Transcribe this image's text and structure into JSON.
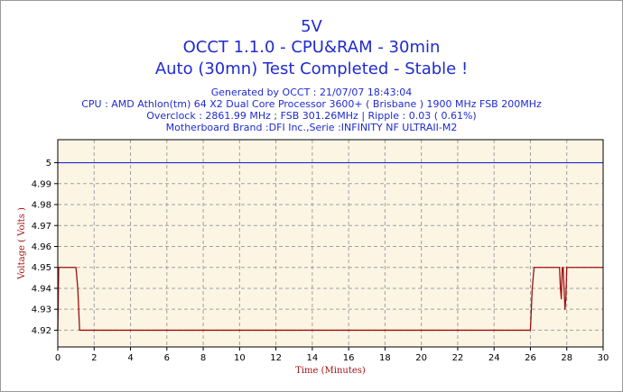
{
  "chart_data": {
    "type": "line",
    "title": "5V",
    "subtitle": "OCCT 1.1.0 - CPU&RAM - 30min",
    "status": "Auto (30mn) Test Completed - Stable !",
    "info_lines": [
      "Generated by OCCT : 21/07/07 18:43:04",
      "CPU : AMD Athlon(tm) 64 X2 Dual Core Processor 3600+ ( Brisbane ) 1900 MHz FSB 200MHz",
      "Overclock : 2861.99 MHz ; FSB 301.26MHz | Ripple : 0.03 ( 0.61%)",
      "Motherboard Brand :DFI Inc.,Serie :INFINITY NF ULTRAII-M2"
    ],
    "xlabel": "Time (Minutes)",
    "ylabel": "Voltage ( Volts )",
    "xlim": [
      0,
      30
    ],
    "ylim": [
      4.912,
      5.011
    ],
    "xticks": [
      0,
      2,
      4,
      6,
      8,
      10,
      12,
      14,
      16,
      18,
      20,
      22,
      24,
      26,
      28,
      30
    ],
    "yticks": [
      4.92,
      4.93,
      4.94,
      4.95,
      4.96,
      4.97,
      4.98,
      4.99,
      5
    ],
    "ytick_labels": [
      "4.92",
      "4.93",
      "4.94",
      "4.95",
      "4.96",
      "4.97",
      "4.98",
      "4.99",
      "5"
    ],
    "grid": true,
    "colors": {
      "text": "#1f2bd0",
      "plot_bg": "#fdf5e4",
      "voltage_line": "#9c1010",
      "ref_line": "#1f2bd0",
      "axis_text": "#9c1010"
    },
    "series": [
      {
        "x": [
          0,
          0.05,
          0.1,
          1.0,
          1.1,
          1.2,
          26.0,
          26.1,
          26.2,
          27.6,
          27.65,
          27.7,
          27.75,
          27.8,
          27.85,
          27.9,
          27.95,
          28.0,
          28.05,
          30
        ],
        "y": [
          4.92,
          4.95,
          4.95,
          4.95,
          4.94,
          4.92,
          4.92,
          4.94,
          4.95,
          4.95,
          4.94,
          4.935,
          4.95,
          4.95,
          4.94,
          4.93,
          4.935,
          4.95,
          4.95,
          4.95
        ]
      },
      {
        "x": [
          0,
          30
        ],
        "y": [
          5.0,
          5.0
        ]
      }
    ]
  }
}
